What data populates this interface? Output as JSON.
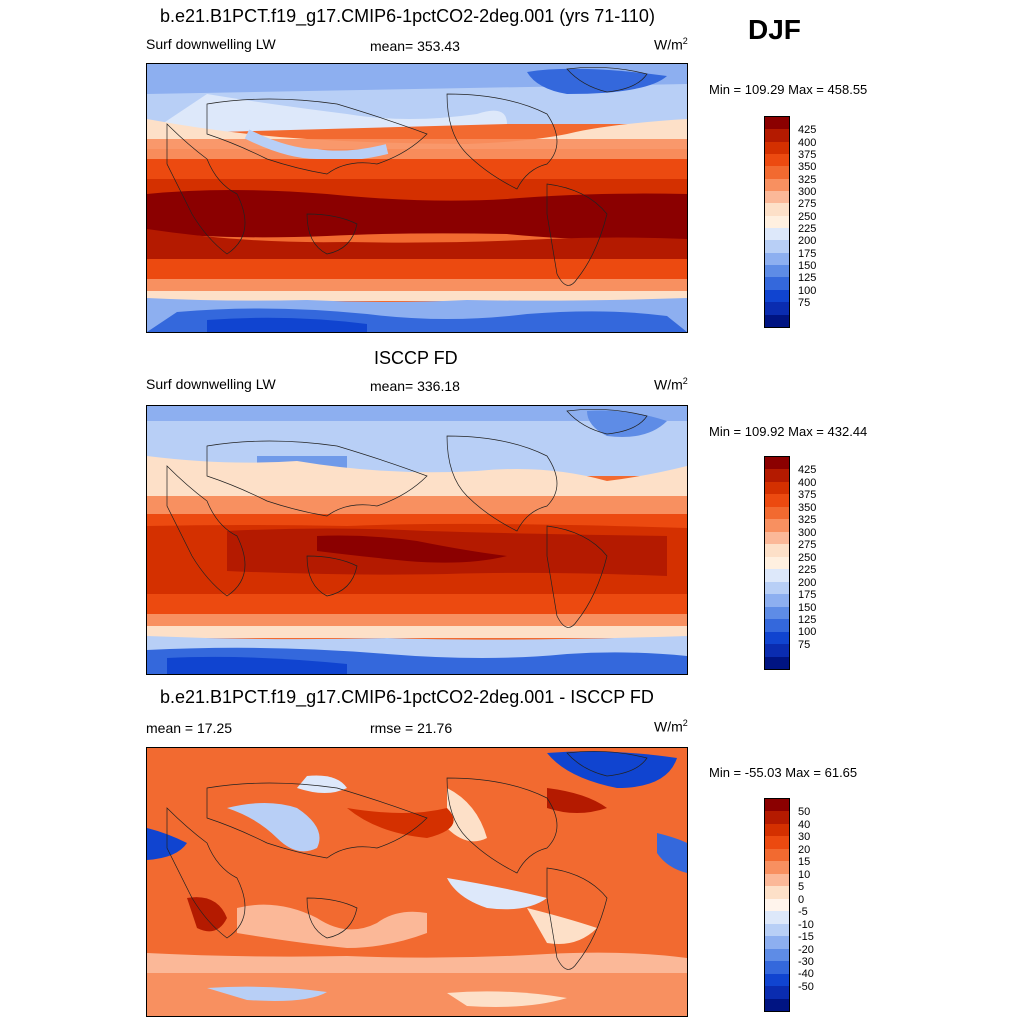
{
  "season": "DJF",
  "panels": [
    {
      "title": "b.e21.B1PCT.f19_g17.CMIP6-1pctCO2-2deg.001 (yrs 71-110)",
      "left_label": "Surf downwelling LW",
      "center_label": "mean= 353.43",
      "units_base": "W/m",
      "units_exp": "2",
      "minmax": "Min = 109.29 Max = 458.55",
      "colorbar": {
        "labels": [
          "425",
          "400",
          "375",
          "350",
          "325",
          "300",
          "275",
          "250",
          "225",
          "200",
          "175",
          "150",
          "125",
          "100",
          "75"
        ],
        "colors": [
          "#8b0000",
          "#b41a00",
          "#d43000",
          "#ec4a10",
          "#f26a30",
          "#f89060",
          "#fbb898",
          "#fde0c8",
          "#fff0e0",
          "#dde8fa",
          "#b8cff6",
          "#8daff0",
          "#5e8ce6",
          "#3468dc",
          "#1044d0",
          "#0a2cb0",
          "#001482"
        ]
      },
      "map_kind": "model"
    },
    {
      "title": "ISCCP FD",
      "left_label": "Surf downwelling LW",
      "center_label": "mean= 336.18",
      "units_base": "W/m",
      "units_exp": "2",
      "minmax": "Min = 109.92 Max = 432.44",
      "colorbar": {
        "labels": [
          "425",
          "400",
          "375",
          "350",
          "325",
          "300",
          "275",
          "250",
          "225",
          "200",
          "175",
          "150",
          "125",
          "100",
          "75"
        ],
        "colors": [
          "#8b0000",
          "#b41a00",
          "#d43000",
          "#ec4a10",
          "#f26a30",
          "#f89060",
          "#fbb898",
          "#fde0c8",
          "#fff0e0",
          "#dde8fa",
          "#b8cff6",
          "#8daff0",
          "#5e8ce6",
          "#3468dc",
          "#1044d0",
          "#0a2cb0",
          "#001482"
        ]
      },
      "map_kind": "obs"
    },
    {
      "title": "b.e21.B1PCT.f19_g17.CMIP6-1pctCO2-2deg.001 - ISCCP FD",
      "left_label": "mean =  17.25",
      "center_label": "rmse =  21.76",
      "units_base": "W/m",
      "units_exp": "2",
      "minmax": "Min = -55.03 Max =  61.65",
      "colorbar": {
        "labels": [
          "50",
          "40",
          "30",
          "20",
          "15",
          "10",
          "5",
          "0",
          "-5",
          "-10",
          "-15",
          "-20",
          "-30",
          "-40",
          "-50"
        ],
        "colors": [
          "#8b0000",
          "#b41a00",
          "#d43000",
          "#ec4a10",
          "#f26a30",
          "#f89060",
          "#fbb898",
          "#fde0c8",
          "#fff4ec",
          "#dde8fa",
          "#b8cff6",
          "#8daff0",
          "#5e8ce6",
          "#3468dc",
          "#1044d0",
          "#0a2cb0",
          "#001482"
        ]
      },
      "map_kind": "diff"
    }
  ]
}
